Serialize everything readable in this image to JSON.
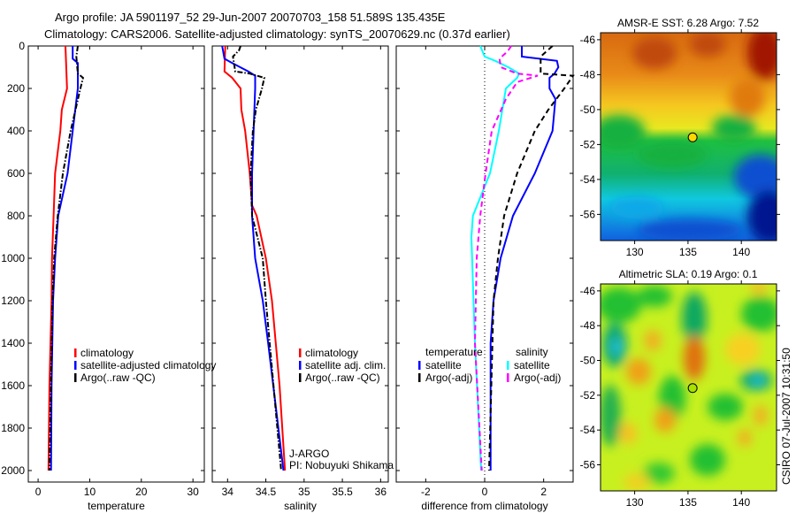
{
  "title_line1": "Argo profile: JA 5901197_52 29-Jun-2007 20070703_158 51.589S 135.435E",
  "title_line2": "Climatology: CARS2006. Satellite-adjusted climatology: synTS_20070629.nc (0.37d earlier)",
  "side_stamp": "CSIRO 07-Jul-2007 10:31:50",
  "credit": {
    "line1": "J-ARGO",
    "line2": "PI: Nobuyuki Shikama"
  },
  "colors": {
    "red": "#ff0000",
    "blue": "#0000ff",
    "black": "#000000",
    "cyan": "#00ffff",
    "magenta": "#ff00ff"
  },
  "chart_data": [
    {
      "type": "line",
      "name": "temperature-profile",
      "xlabel": "temperature",
      "ylabel": "",
      "xlim": [
        -1.9,
        32.2
      ],
      "ylim": [
        2000,
        0
      ],
      "xticks": [
        0,
        10,
        20,
        30
      ],
      "yticks": [
        0,
        200,
        400,
        600,
        800,
        1000,
        1200,
        1400,
        1600,
        1800,
        2000
      ],
      "legend": [
        "climatology",
        "satellite-adjusted climatology",
        "Argo(..raw -QC)"
      ],
      "series": [
        {
          "name": "climatology",
          "color": "#ff0000",
          "style": "solid",
          "depth": [
            0,
            200,
            300,
            400,
            600,
            800,
            1000,
            1200,
            1600,
            2000
          ],
          "values": [
            5.3,
            5.6,
            4.6,
            4.3,
            3.3,
            3.0,
            2.7,
            2.6,
            2.2,
            2.0
          ]
        },
        {
          "name": "satellite-adjusted climatology",
          "color": "#0000ff",
          "style": "solid",
          "depth": [
            0,
            60,
            80,
            200,
            300,
            400,
            600,
            800,
            1000,
            1200,
            1600,
            2000
          ],
          "values": [
            6.7,
            6.7,
            7.7,
            7.7,
            7.2,
            6.7,
            5.7,
            3.9,
            3.3,
            2.9,
            2.6,
            2.5
          ]
        },
        {
          "name": "Argo(..raw -QC)",
          "color": "#000000",
          "style": "dashdot",
          "depth": [
            0,
            50,
            130,
            150,
            200,
            400,
            600,
            800,
            1000,
            1200,
            2000
          ],
          "values": [
            7.7,
            7.4,
            7.7,
            8.7,
            8.2,
            6.3,
            4.8,
            3.8,
            3.1,
            2.8,
            2.2
          ]
        }
      ]
    },
    {
      "type": "line",
      "name": "salinity-profile",
      "xlabel": "salinity",
      "xlim": [
        33.8,
        36.1
      ],
      "ylim": [
        2000,
        0
      ],
      "xticks": [
        34,
        34.5,
        35,
        35.5,
        36
      ],
      "legend": [
        "climatology",
        "satellite adj. clim.",
        "Argo(..raw -QC)"
      ],
      "series": [
        {
          "name": "climatology",
          "color": "#ff0000",
          "style": "solid",
          "depth": [
            0,
            120,
            150,
            200,
            300,
            400,
            600,
            750,
            800,
            1000,
            1200,
            1600,
            2000
          ],
          "values": [
            33.97,
            33.96,
            34.06,
            34.17,
            34.18,
            34.23,
            34.29,
            34.32,
            34.38,
            34.5,
            34.58,
            34.68,
            34.75
          ]
        },
        {
          "name": "satellite adj. clim.",
          "color": "#0000ff",
          "style": "solid",
          "depth": [
            0,
            60,
            80,
            120,
            140,
            200,
            600,
            800,
            1000,
            1200,
            1400,
            2000
          ],
          "values": [
            33.93,
            33.96,
            34.06,
            34.27,
            34.36,
            34.36,
            34.32,
            34.32,
            34.36,
            34.46,
            34.53,
            34.73
          ]
        },
        {
          "name": "Argo(..raw -QC)",
          "color": "#000000",
          "style": "dashdot",
          "depth": [
            0,
            20,
            50,
            120,
            130,
            150,
            200,
            300,
            400,
            600,
            800,
            1000,
            1200,
            2000
          ],
          "values": [
            34.17,
            34.15,
            34.07,
            34.1,
            34.29,
            34.48,
            34.45,
            34.37,
            34.33,
            34.3,
            34.32,
            34.46,
            34.5,
            34.7
          ]
        }
      ]
    },
    {
      "type": "line",
      "name": "difference-profile",
      "xlabel": "difference from climatology",
      "xlim": [
        -3,
        3
      ],
      "ylim": [
        2000,
        0
      ],
      "xticks": [
        -2,
        0,
        2
      ],
      "legend_groups": [
        {
          "title": "temperature",
          "entries": [
            "satellite",
            "Argo(-adj)"
          ]
        },
        {
          "title": "salinity",
          "entries": [
            "satellite",
            "Argo(-adj)"
          ]
        }
      ],
      "series": [
        {
          "name": "temperature satellite",
          "color": "#0000ff",
          "style": "solid",
          "depth": [
            0,
            50,
            70,
            100,
            130,
            150,
            200,
            250,
            400,
            600,
            800,
            1000,
            1200,
            1400,
            2000
          ],
          "values": [
            1.26,
            1.26,
            2.45,
            2.5,
            2.37,
            2.2,
            2.2,
            2.4,
            2.3,
            1.7,
            0.96,
            0.54,
            0.3,
            0.2,
            0.2
          ]
        },
        {
          "name": "temperature Argo(-adj)",
          "color": "#000000",
          "style": "dashed",
          "depth": [
            0,
            50,
            130,
            140,
            200,
            300,
            400,
            600,
            800,
            1000,
            1200,
            2000
          ],
          "values": [
            2.3,
            1.9,
            1.9,
            3.0,
            2.7,
            2.16,
            1.7,
            1.1,
            0.66,
            0.45,
            0.3,
            0.15
          ]
        },
        {
          "name": "salinity satellite",
          "color": "#00ffff",
          "style": "solid",
          "depth": [
            0,
            50,
            70,
            100,
            130,
            150,
            200,
            300,
            400,
            600,
            800,
            900,
            1400,
            2000
          ],
          "values": [
            -0.15,
            0.0,
            0.36,
            0.8,
            1.17,
            1.1,
            0.72,
            0.6,
            0.48,
            0.18,
            -0.4,
            -0.45,
            -0.33,
            -0.12
          ]
        },
        {
          "name": "salinity Argo(-adj)",
          "color": "#ff00ff",
          "style": "dashed",
          "depth": [
            0,
            25,
            60,
            100,
            130,
            140,
            170,
            250,
            400,
            600,
            800,
            1000,
            1400,
            2000
          ],
          "values": [
            0.9,
            0.78,
            0.5,
            0.55,
            1.1,
            1.8,
            1.1,
            0.72,
            0.24,
            0.03,
            -0.15,
            -0.27,
            -0.33,
            -0.1
          ]
        }
      ]
    },
    {
      "type": "heatmap",
      "name": "sst-map",
      "title": "AMSR-E SST: 6.28 Argo: 7.52",
      "xlim": [
        126.8,
        143.3
      ],
      "ylim": [
        -57.5,
        -45.6
      ],
      "xticks": [
        130,
        135,
        140
      ],
      "yticks": [
        -46,
        -48,
        -50,
        -52,
        -54,
        -56
      ],
      "marker": {
        "lon": 135.435,
        "lat": -51.589,
        "color": "#ffd700"
      }
    },
    {
      "type": "heatmap",
      "name": "sla-map",
      "title": "Altimetric SLA: 0.19 Argo: 0.1",
      "xlim": [
        126.8,
        143.3
      ],
      "ylim": [
        -57.5,
        -45.6
      ],
      "xticks": [
        130,
        135,
        140
      ],
      "yticks": [
        -46,
        -48,
        -50,
        -52,
        -54,
        -56
      ],
      "marker": {
        "lon": 135.435,
        "lat": -51.589,
        "color": "#a8e000"
      }
    }
  ]
}
